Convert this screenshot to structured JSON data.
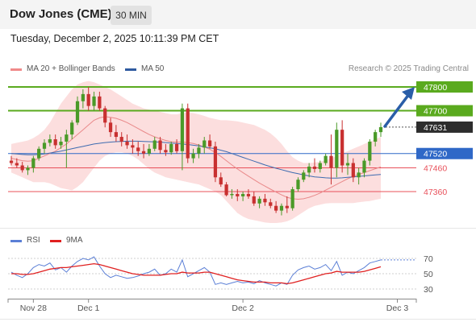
{
  "header": {
    "instrument": "Dow Jones (CME)",
    "timeframe": "30 MIN",
    "datetime": "Tuesday, December 2, 2025 10:11:39 PM CET",
    "credit": "Research © 2025 Trading Central"
  },
  "colors": {
    "resistance": "#5aaa1e",
    "support": "#e8505a",
    "pivot": "#2f68c7",
    "last_price": "#2d2d2d",
    "bull_candle": "#4a9a28",
    "bear_candle": "#c83030",
    "bollinger_fill": "#fbd3d3",
    "ma20": "#e9898a",
    "ma50": "#3d6bb0",
    "rsi": "#5b7fd6",
    "rsi_ma": "#e02020"
  },
  "chart_data": [
    {
      "type": "candlestick",
      "legend": [
        "MA 20 + Bollinger Bands",
        "MA 50"
      ],
      "y_range": [
        47240,
        47870
      ],
      "levels": [
        {
          "value": 47800,
          "label": "47800",
          "kind": "resistance"
        },
        {
          "value": 47700,
          "label": "47700",
          "kind": "resistance"
        },
        {
          "value": 47631,
          "label": "47631",
          "kind": "last"
        },
        {
          "value": 47520,
          "label": "47520",
          "kind": "pivot"
        },
        {
          "value": 47460,
          "label": "47460",
          "kind": "support"
        },
        {
          "value": 47360,
          "label": "47360",
          "kind": "support"
        }
      ],
      "x_labels": [
        "Nov 28",
        "Dec 1",
        "Dec 2",
        "Dec 3"
      ],
      "x_label_index": [
        4,
        14,
        42,
        70
      ],
      "candles": [
        [
          47490,
          47510,
          47470,
          47480
        ],
        [
          47480,
          47500,
          47460,
          47470
        ],
        [
          47470,
          47485,
          47440,
          47450
        ],
        [
          47450,
          47470,
          47430,
          47460
        ],
        [
          47460,
          47510,
          47440,
          47500
        ],
        [
          47500,
          47550,
          47490,
          47540
        ],
        [
          47540,
          47580,
          47520,
          47565
        ],
        [
          47565,
          47600,
          47550,
          47580
        ],
        [
          47580,
          47600,
          47540,
          47555
        ],
        [
          47555,
          47590,
          47540,
          47570
        ],
        [
          47570,
          47620,
          47460,
          47600
        ],
        [
          47600,
          47660,
          47580,
          47650
        ],
        [
          47650,
          47760,
          47640,
          47740
        ],
        [
          47740,
          47790,
          47710,
          47770
        ],
        [
          47770,
          47800,
          47700,
          47720
        ],
        [
          47720,
          47780,
          47700,
          47760
        ],
        [
          47760,
          47780,
          47700,
          47710
        ],
        [
          47710,
          47720,
          47630,
          47650
        ],
        [
          47650,
          47670,
          47590,
          47610
        ],
        [
          47610,
          47640,
          47570,
          47590
        ],
        [
          47590,
          47610,
          47550,
          47570
        ],
        [
          47570,
          47600,
          47540,
          47555
        ],
        [
          47555,
          47580,
          47520,
          47545
        ],
        [
          47545,
          47570,
          47510,
          47530
        ],
        [
          47530,
          47560,
          47500,
          47520
        ],
        [
          47520,
          47560,
          47510,
          47540
        ],
        [
          47540,
          47590,
          47530,
          47575
        ],
        [
          47575,
          47590,
          47520,
          47535
        ],
        [
          47535,
          47560,
          47510,
          47525
        ],
        [
          47525,
          47570,
          47515,
          47560
        ],
        [
          47560,
          47580,
          47520,
          47530
        ],
        [
          47530,
          47730,
          47450,
          47710
        ],
        [
          47710,
          47730,
          47480,
          47500
        ],
        [
          47500,
          47540,
          47480,
          47520
        ],
        [
          47520,
          47560,
          47500,
          47545
        ],
        [
          47545,
          47590,
          47520,
          47575
        ],
        [
          47575,
          47600,
          47540,
          47550
        ],
        [
          47550,
          47570,
          47400,
          47420
        ],
        [
          47420,
          47440,
          47380,
          47390
        ],
        [
          47390,
          47400,
          47340,
          47345
        ],
        [
          47345,
          47370,
          47330,
          47350
        ],
        [
          47350,
          47370,
          47320,
          47340
        ],
        [
          47340,
          47360,
          47320,
          47350
        ],
        [
          47350,
          47370,
          47330,
          47340
        ],
        [
          47340,
          47360,
          47300,
          47310
        ],
        [
          47310,
          47340,
          47290,
          47330
        ],
        [
          47330,
          47350,
          47300,
          47315
        ],
        [
          47315,
          47330,
          47290,
          47300
        ],
        [
          47300,
          47320,
          47270,
          47280
        ],
        [
          47280,
          47310,
          47260,
          47300
        ],
        [
          47300,
          47340,
          47270,
          47290
        ],
        [
          47290,
          47380,
          47280,
          47370
        ],
        [
          47370,
          47420,
          47360,
          47410
        ],
        [
          47410,
          47450,
          47400,
          47440
        ],
        [
          47440,
          47480,
          47420,
          47465
        ],
        [
          47465,
          47500,
          47440,
          47455
        ],
        [
          47455,
          47490,
          47440,
          47480
        ],
        [
          47480,
          47520,
          47470,
          47510
        ],
        [
          47510,
          47600,
          47390,
          47460
        ],
        [
          47460,
          47650,
          47420,
          47620
        ],
        [
          47620,
          47660,
          47440,
          47470
        ],
        [
          47470,
          47520,
          47430,
          47480
        ],
        [
          47480,
          47500,
          47400,
          47420
        ],
        [
          47420,
          47460,
          47390,
          47440
        ],
        [
          47440,
          47500,
          47420,
          47490
        ],
        [
          47490,
          47580,
          47470,
          47570
        ],
        [
          47570,
          47620,
          47550,
          47610
        ],
        [
          47610,
          47650,
          47590,
          47631
        ]
      ],
      "ma20": [
        47500,
        47495,
        47490,
        47488,
        47490,
        47500,
        47510,
        47520,
        47530,
        47545,
        47560,
        47580,
        47600,
        47620,
        47640,
        47660,
        47670,
        47675,
        47672,
        47668,
        47660,
        47650,
        47638,
        47625,
        47612,
        47600,
        47590,
        47582,
        47575,
        47570,
        47568,
        47568,
        47566,
        47562,
        47556,
        47548,
        47538,
        47524,
        47508,
        47490,
        47472,
        47455,
        47440,
        47425,
        47410,
        47396,
        47383,
        47370,
        47358,
        47346,
        47336,
        47330,
        47328,
        47330,
        47336,
        47344,
        47354,
        47366,
        47378,
        47390,
        47402,
        47414,
        47424,
        47432,
        47440,
        47448,
        47456,
        47464
      ],
      "bb_upper": [
        47560,
        47565,
        47570,
        47575,
        47585,
        47600,
        47620,
        47650,
        47690,
        47730,
        47760,
        47790,
        47810,
        47820,
        47825,
        47820,
        47810,
        47800,
        47790,
        47775,
        47760,
        47745,
        47730,
        47720,
        47710,
        47705,
        47700,
        47695,
        47690,
        47685,
        47685,
        47690,
        47692,
        47690,
        47685,
        47678,
        47670,
        47665,
        47660,
        47660,
        47658,
        47655,
        47650,
        47645,
        47640,
        47630,
        47620,
        47605,
        47585,
        47560,
        47530,
        47505,
        47490,
        47480,
        47480,
        47482,
        47486,
        47492,
        47500,
        47510,
        47520,
        47530,
        47540,
        47550,
        47560,
        47570,
        47580,
        47590
      ],
      "bb_lower": [
        47440,
        47430,
        47420,
        47410,
        47400,
        47400,
        47400,
        47395,
        47385,
        47375,
        47370,
        47365,
        47380,
        47400,
        47430,
        47460,
        47490,
        47510,
        47520,
        47525,
        47525,
        47520,
        47510,
        47495,
        47475,
        47455,
        47440,
        47430,
        47420,
        47415,
        47410,
        47405,
        47400,
        47395,
        47390,
        47380,
        47370,
        47360,
        47345,
        47320,
        47295,
        47270,
        47255,
        47245,
        47240,
        47235,
        47230,
        47228,
        47228,
        47230,
        47235,
        47245,
        47260,
        47275,
        47290,
        47300,
        47305,
        47310,
        47312,
        47312,
        47312,
        47312,
        47312,
        47315,
        47318,
        47320,
        47325,
        47330
      ],
      "ma50": [
        47520,
        47518,
        47516,
        47515,
        47515,
        47516,
        47518,
        47522,
        47526,
        47530,
        47535,
        47540,
        47545,
        47550,
        47555,
        47560,
        47563,
        47566,
        47568,
        47570,
        47571,
        47572,
        47572,
        47572,
        47571,
        47570,
        47569,
        47568,
        47566,
        47564,
        47562,
        47560,
        47558,
        47555,
        47552,
        47548,
        47544,
        47540,
        47534,
        47528,
        47520,
        47512,
        47504,
        47496,
        47488,
        47480,
        47472,
        47465,
        47458,
        47452,
        47446,
        47440,
        47435,
        47430,
        47426,
        47422,
        47420,
        47418,
        47417,
        47417,
        47418,
        47420,
        47422,
        47424,
        47426,
        47428,
        47430,
        47432
      ]
    },
    {
      "type": "line",
      "legend": [
        "RSI",
        "9MA"
      ],
      "y_ticks": [
        70,
        50,
        30
      ],
      "y_range": [
        20,
        80
      ],
      "rsi": [
        52,
        48,
        45,
        50,
        58,
        62,
        60,
        64,
        55,
        58,
        52,
        60,
        66,
        70,
        68,
        72,
        60,
        50,
        45,
        48,
        46,
        44,
        45,
        47,
        50,
        52,
        56,
        48,
        50,
        56,
        52,
        68,
        46,
        50,
        54,
        58,
        52,
        36,
        38,
        36,
        38,
        40,
        38,
        39,
        37,
        41,
        38,
        36,
        34,
        38,
        36,
        48,
        55,
        58,
        60,
        56,
        58,
        62,
        54,
        66,
        48,
        52,
        50,
        54,
        58,
        64,
        66,
        68
      ],
      "rsi_ma": [
        50,
        50,
        49,
        49,
        50,
        52,
        54,
        56,
        57,
        58,
        58,
        59,
        60,
        61,
        62,
        63,
        62,
        60,
        58,
        56,
        54,
        52,
        50,
        49,
        48,
        48,
        48,
        48,
        49,
        50,
        50,
        52,
        51,
        51,
        51,
        52,
        52,
        50,
        48,
        46,
        44,
        42,
        41,
        40,
        39,
        39,
        39,
        38,
        38,
        38,
        37,
        38,
        40,
        42,
        44,
        46,
        48,
        50,
        51,
        53,
        52,
        52,
        52,
        52,
        53,
        55,
        57,
        59
      ]
    }
  ]
}
